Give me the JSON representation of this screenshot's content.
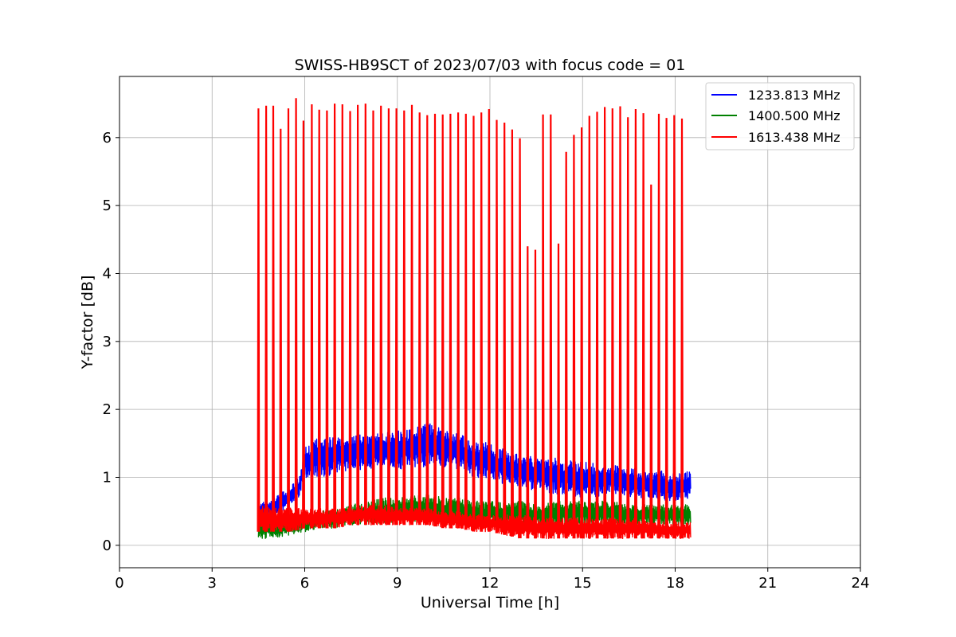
{
  "chart_data": {
    "type": "line",
    "title": "SWISS-HB9SCT of 2023/07/03 with focus code = 01",
    "xlabel": "Universal Time [h]",
    "ylabel": "Y-factor [dB]",
    "xlim": [
      0,
      24
    ],
    "ylim": [
      -0.33,
      6.9
    ],
    "xticks": [
      0,
      3,
      6,
      9,
      12,
      15,
      18,
      21,
      24
    ],
    "yticks": [
      0,
      1,
      2,
      3,
      4,
      5,
      6
    ],
    "grid": true,
    "legend_position": "top-right",
    "series": [
      {
        "name": "1233.813 MHz",
        "color": "#0000ff",
        "x": [
          4.5,
          5.0,
          5.5,
          5.8,
          6.0,
          6.5,
          7.0,
          7.5,
          8.0,
          8.5,
          9.0,
          9.5,
          10.0,
          10.5,
          11.0,
          11.5,
          12.0,
          12.5,
          13.0,
          13.5,
          14.0,
          14.5,
          15.0,
          15.5,
          16.0,
          16.5,
          17.0,
          17.5,
          18.0,
          18.5
        ],
        "low": [
          0.35,
          0.45,
          0.55,
          0.65,
          1.0,
          1.0,
          1.05,
          1.1,
          1.1,
          1.15,
          1.1,
          1.15,
          1.15,
          1.15,
          1.1,
          1.0,
          0.95,
          0.9,
          0.85,
          0.8,
          0.75,
          0.75,
          0.7,
          0.7,
          0.75,
          0.7,
          0.7,
          0.65,
          0.65,
          0.7
        ],
        "high": [
          0.6,
          0.7,
          0.85,
          1.0,
          1.45,
          1.6,
          1.6,
          1.6,
          1.65,
          1.65,
          1.7,
          1.75,
          1.8,
          1.7,
          1.65,
          1.55,
          1.5,
          1.4,
          1.35,
          1.3,
          1.3,
          1.25,
          1.25,
          1.2,
          1.2,
          1.15,
          1.1,
          1.1,
          1.05,
          1.1
        ]
      },
      {
        "name": "1400.500 MHz",
        "color": "#008000",
        "x": [
          4.5,
          5.0,
          5.5,
          6.0,
          6.5,
          7.0,
          7.5,
          8.0,
          8.5,
          9.0,
          9.5,
          10.0,
          10.5,
          11.0,
          11.5,
          12.0,
          12.5,
          13.0,
          13.5,
          14.0,
          14.5,
          15.0,
          15.5,
          16.0,
          16.5,
          17.0,
          17.5,
          18.0,
          18.5
        ],
        "low": [
          0.1,
          0.1,
          0.15,
          0.2,
          0.25,
          0.25,
          0.3,
          0.3,
          0.3,
          0.35,
          0.35,
          0.35,
          0.35,
          0.3,
          0.3,
          0.3,
          0.3,
          0.3,
          0.3,
          0.3,
          0.3,
          0.3,
          0.3,
          0.3,
          0.3,
          0.3,
          0.3,
          0.3,
          0.3
        ],
        "high": [
          0.4,
          0.4,
          0.4,
          0.45,
          0.5,
          0.55,
          0.6,
          0.65,
          0.7,
          0.7,
          0.75,
          0.75,
          0.7,
          0.7,
          0.65,
          0.65,
          0.65,
          0.65,
          0.6,
          0.65,
          0.65,
          0.65,
          0.65,
          0.65,
          0.6,
          0.6,
          0.6,
          0.6,
          0.6
        ]
      },
      {
        "name": "1613.438 MHz",
        "color": "#ff0000",
        "x": [
          4.5,
          5.0,
          5.5,
          6.0,
          6.5,
          7.0,
          7.5,
          8.0,
          8.5,
          9.0,
          9.5,
          10.0,
          10.5,
          11.0,
          11.5,
          12.0,
          12.5,
          13.0,
          13.5,
          14.0,
          14.5,
          15.0,
          15.5,
          16.0,
          16.5,
          17.0,
          17.5,
          18.0,
          18.5
        ],
        "low": [
          0.2,
          0.2,
          0.2,
          0.25,
          0.25,
          0.25,
          0.3,
          0.3,
          0.3,
          0.3,
          0.3,
          0.3,
          0.25,
          0.25,
          0.2,
          0.2,
          0.15,
          0.1,
          0.1,
          0.1,
          0.1,
          0.1,
          0.1,
          0.1,
          0.1,
          0.1,
          0.1,
          0.1,
          0.1
        ],
        "high": [
          0.6,
          0.55,
          0.55,
          0.55,
          0.55,
          0.55,
          0.55,
          0.6,
          0.6,
          0.55,
          0.55,
          0.55,
          0.5,
          0.5,
          0.45,
          0.45,
          0.45,
          0.45,
          0.4,
          0.4,
          0.4,
          0.4,
          0.4,
          0.4,
          0.4,
          0.4,
          0.35,
          0.35,
          0.35
        ],
        "spikes": [
          {
            "x": 4.5,
            "y": 6.43
          },
          {
            "x": 4.75,
            "y": 6.47
          },
          {
            "x": 4.98,
            "y": 6.47
          },
          {
            "x": 5.22,
            "y": 6.13
          },
          {
            "x": 5.47,
            "y": 6.43
          },
          {
            "x": 5.72,
            "y": 6.58
          },
          {
            "x": 5.96,
            "y": 6.25
          },
          {
            "x": 6.23,
            "y": 6.49
          },
          {
            "x": 6.47,
            "y": 6.41
          },
          {
            "x": 6.72,
            "y": 6.4
          },
          {
            "x": 6.97,
            "y": 6.5
          },
          {
            "x": 7.22,
            "y": 6.49
          },
          {
            "x": 7.47,
            "y": 6.39
          },
          {
            "x": 7.72,
            "y": 6.48
          },
          {
            "x": 7.97,
            "y": 6.5
          },
          {
            "x": 8.22,
            "y": 6.4
          },
          {
            "x": 8.47,
            "y": 6.47
          },
          {
            "x": 8.72,
            "y": 6.43
          },
          {
            "x": 8.97,
            "y": 6.43
          },
          {
            "x": 9.22,
            "y": 6.4
          },
          {
            "x": 9.47,
            "y": 6.48
          },
          {
            "x": 9.72,
            "y": 6.37
          },
          {
            "x": 9.97,
            "y": 6.33
          },
          {
            "x": 10.22,
            "y": 6.35
          },
          {
            "x": 10.47,
            "y": 6.34
          },
          {
            "x": 10.72,
            "y": 6.35
          },
          {
            "x": 10.97,
            "y": 6.37
          },
          {
            "x": 11.22,
            "y": 6.35
          },
          {
            "x": 11.47,
            "y": 6.32
          },
          {
            "x": 11.72,
            "y": 6.37
          },
          {
            "x": 11.97,
            "y": 6.42
          },
          {
            "x": 12.22,
            "y": 6.26
          },
          {
            "x": 12.47,
            "y": 6.22
          },
          {
            "x": 12.72,
            "y": 6.12
          },
          {
            "x": 12.97,
            "y": 5.99
          },
          {
            "x": 13.22,
            "y": 4.4
          },
          {
            "x": 13.47,
            "y": 4.35
          },
          {
            "x": 13.72,
            "y": 6.34
          },
          {
            "x": 13.97,
            "y": 6.34
          },
          {
            "x": 14.22,
            "y": 4.44
          },
          {
            "x": 14.47,
            "y": 5.79
          },
          {
            "x": 14.72,
            "y": 6.04
          },
          {
            "x": 14.97,
            "y": 6.15
          },
          {
            "x": 15.22,
            "y": 6.32
          },
          {
            "x": 15.47,
            "y": 6.38
          },
          {
            "x": 15.72,
            "y": 6.45
          },
          {
            "x": 15.97,
            "y": 6.43
          },
          {
            "x": 16.22,
            "y": 6.46
          },
          {
            "x": 16.47,
            "y": 6.3
          },
          {
            "x": 16.72,
            "y": 6.42
          },
          {
            "x": 16.97,
            "y": 6.36
          },
          {
            "x": 17.22,
            "y": 5.31
          },
          {
            "x": 17.47,
            "y": 6.35
          },
          {
            "x": 17.72,
            "y": 6.29
          },
          {
            "x": 17.97,
            "y": 6.33
          },
          {
            "x": 18.22,
            "y": 6.28
          }
        ]
      }
    ]
  }
}
